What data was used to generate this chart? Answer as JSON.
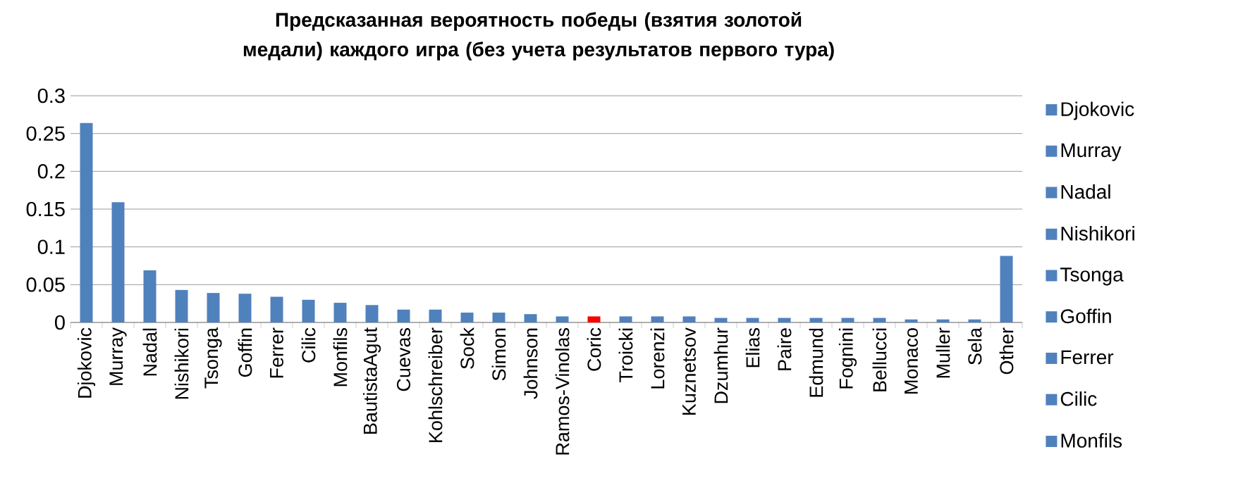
{
  "chart_data": {
    "type": "bar",
    "title": "Предсказанная вероятность победы (взятия золотой медали) каждого игра (без учета результатов первого тура)",
    "categories": [
      "Djokovic",
      "Murray",
      "Nadal",
      "Nishikori",
      "Tsonga",
      "Goffin",
      "Ferrer",
      "Cilic",
      "Monfils",
      "BautistaAgut",
      "Cuevas",
      "Kohlschreiber",
      "Sock",
      "Simon",
      "Johnson",
      "Ramos-Vinolas",
      "Coric",
      "Troicki",
      "Lorenzi",
      "Kuznetsov",
      "Dzumhur",
      "Elias",
      "Paire",
      "Edmund",
      "Fognini",
      "Bellucci",
      "Monaco",
      "Muller",
      "Sela",
      "Other"
    ],
    "values": [
      0.264,
      0.159,
      0.069,
      0.043,
      0.039,
      0.038,
      0.034,
      0.03,
      0.026,
      0.023,
      0.017,
      0.017,
      0.013,
      0.013,
      0.011,
      0.008,
      0.008,
      0.008,
      0.008,
      0.008,
      0.006,
      0.006,
      0.006,
      0.006,
      0.006,
      0.006,
      0.004,
      0.004,
      0.004,
      0.088
    ],
    "colors": [
      "#4f81bd",
      "#4f81bd",
      "#4f81bd",
      "#4f81bd",
      "#4f81bd",
      "#4f81bd",
      "#4f81bd",
      "#4f81bd",
      "#4f81bd",
      "#4f81bd",
      "#4f81bd",
      "#4f81bd",
      "#4f81bd",
      "#4f81bd",
      "#4f81bd",
      "#4f81bd",
      "#ff0000",
      "#4f81bd",
      "#4f81bd",
      "#4f81bd",
      "#4f81bd",
      "#4f81bd",
      "#4f81bd",
      "#4f81bd",
      "#4f81bd",
      "#4f81bd",
      "#4f81bd",
      "#4f81bd",
      "#4f81bd",
      "#4f81bd"
    ],
    "ylim": [
      0,
      0.3
    ],
    "yticks": [
      0,
      0.05,
      0.1,
      0.15,
      0.2,
      0.25,
      0.3
    ],
    "grid": "y"
  }
}
